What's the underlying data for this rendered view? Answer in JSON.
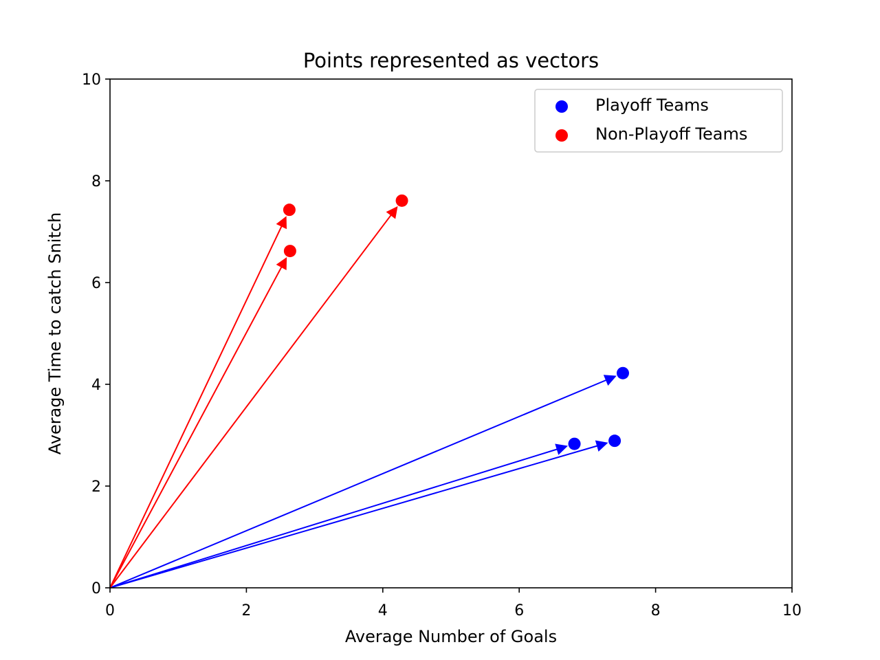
{
  "chart_data": {
    "type": "scatter",
    "title": "Points represented as vectors",
    "xlabel": "Average Number of Goals",
    "ylabel": "Average Time to catch Snitch",
    "xlim": [
      0,
      10
    ],
    "ylim": [
      0,
      10
    ],
    "xticks": [
      0,
      2,
      4,
      6,
      8,
      10
    ],
    "yticks": [
      0,
      2,
      4,
      6,
      8,
      10
    ],
    "grid": false,
    "legend_position": "top-right",
    "vectors_from_origin": true,
    "series": [
      {
        "name": "Playoff Teams",
        "color": "#0000ff",
        "points": [
          {
            "x": 7.52,
            "y": 4.22
          },
          {
            "x": 6.81,
            "y": 2.83
          },
          {
            "x": 7.4,
            "y": 2.89
          }
        ]
      },
      {
        "name": "Non-Playoff Teams",
        "color": "#ff0000",
        "points": [
          {
            "x": 2.63,
            "y": 7.43
          },
          {
            "x": 2.64,
            "y": 6.62
          },
          {
            "x": 4.28,
            "y": 7.61
          }
        ]
      }
    ]
  }
}
